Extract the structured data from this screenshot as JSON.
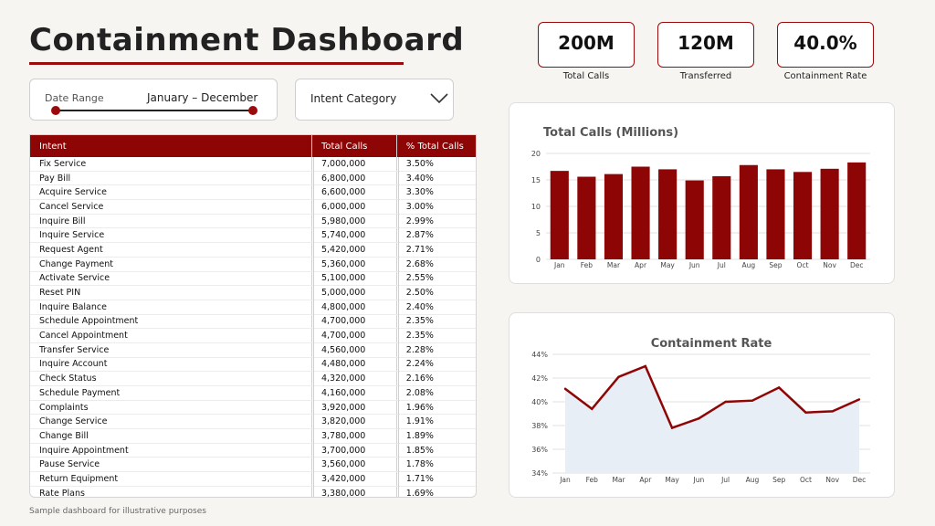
{
  "header": {
    "title": "Containment Dashboard"
  },
  "filters": {
    "date_range": {
      "label": "Date Range",
      "value": "January – December"
    },
    "intent_category": {
      "label": "Intent Category"
    }
  },
  "kpis": [
    {
      "value": "200M",
      "label": "Total Calls"
    },
    {
      "value": "120M",
      "label": "Transferred"
    },
    {
      "value": "40.0%",
      "label": "Containment Rate"
    }
  ],
  "table": {
    "headers": [
      "Intent",
      "Total Calls",
      "% Total Calls"
    ],
    "rows": [
      [
        "Fix Service",
        "7,000,000",
        "3.50%"
      ],
      [
        "Pay Bill",
        "6,800,000",
        "3.40%"
      ],
      [
        "Acquire Service",
        "6,600,000",
        "3.30%"
      ],
      [
        "Cancel Service",
        "6,000,000",
        "3.00%"
      ],
      [
        "Inquire Bill",
        "5,980,000",
        "2.99%"
      ],
      [
        "Inquire Service",
        "5,740,000",
        "2.87%"
      ],
      [
        "Request Agent",
        "5,420,000",
        "2.71%"
      ],
      [
        "Change Payment",
        "5,360,000",
        "2.68%"
      ],
      [
        "Activate Service",
        "5,100,000",
        "2.55%"
      ],
      [
        "Reset PIN",
        "5,000,000",
        "2.50%"
      ],
      [
        "Inquire Balance",
        "4,800,000",
        "2.40%"
      ],
      [
        "Schedule Appointment",
        "4,700,000",
        "2.35%"
      ],
      [
        "Cancel Appointment",
        "4,700,000",
        "2.35%"
      ],
      [
        "Transfer Service",
        "4,560,000",
        "2.28%"
      ],
      [
        "Inquire Account",
        "4,480,000",
        "2.24%"
      ],
      [
        "Check Status",
        "4,320,000",
        "2.16%"
      ],
      [
        "Schedule Payment",
        "4,160,000",
        "2.08%"
      ],
      [
        "Complaints",
        "3,920,000",
        "1.96%"
      ],
      [
        "Change Service",
        "3,820,000",
        "1.91%"
      ],
      [
        "Change Bill",
        "3,780,000",
        "1.89%"
      ],
      [
        "Inquire Appointment",
        "3,700,000",
        "1.85%"
      ],
      [
        "Pause Service",
        "3,560,000",
        "1.78%"
      ],
      [
        "Return Equipment",
        "3,420,000",
        "1.71%"
      ],
      [
        "Rate Plans",
        "3,380,000",
        "1.69%"
      ]
    ]
  },
  "footnote": "Sample dashboard for illustrative purposes",
  "colors": {
    "accent": "#9b0b0b",
    "bar": "#8e0505",
    "area_fill": "#e8eef6"
  },
  "chart_data": [
    {
      "type": "bar",
      "title": "Total Calls (Millions)",
      "categories": [
        "Jan",
        "Feb",
        "Mar",
        "Apr",
        "May",
        "Jun",
        "Jul",
        "Aug",
        "Sep",
        "Oct",
        "Nov",
        "Dec"
      ],
      "values": [
        16.7,
        15.6,
        16.1,
        17.5,
        17.0,
        14.9,
        15.7,
        17.8,
        17.0,
        16.5,
        17.1,
        18.3
      ],
      "ylim": [
        0,
        20
      ],
      "yticks": [
        "0",
        "5",
        "10",
        "15",
        "20"
      ],
      "grid": true
    },
    {
      "type": "area",
      "title": "Containment Rate",
      "categories": [
        "Jan",
        "Feb",
        "Mar",
        "Apr",
        "May",
        "Jun",
        "Jul",
        "Aug",
        "Sep",
        "Oct",
        "Nov",
        "Dec"
      ],
      "values": [
        41.1,
        39.4,
        42.1,
        43.0,
        37.8,
        38.6,
        40.0,
        40.1,
        41.2,
        39.1,
        39.2,
        40.2
      ],
      "ylim": [
        34,
        44
      ],
      "yticks": [
        "34%",
        "36%",
        "38%",
        "40%",
        "42%",
        "44%"
      ],
      "grid": true
    }
  ]
}
